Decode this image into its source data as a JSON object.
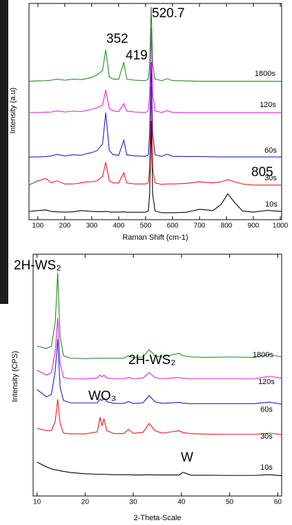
{
  "chart_data": [
    {
      "type": "line",
      "xlabel": "Raman Shift (cm-1)",
      "ylabel": "Intensity (a.u)",
      "xlim": [
        67,
        1005
      ],
      "ylim": [
        0,
        100
      ],
      "xticks": [
        100,
        200,
        300,
        400,
        500,
        600,
        700,
        800,
        900,
        1000
      ],
      "annotations": [
        "520.7",
        "352",
        "419",
        "805"
      ],
      "x": [
        67,
        100,
        130,
        150,
        170,
        200,
        230,
        260,
        280,
        300,
        320,
        340,
        352,
        365,
        380,
        400,
        419,
        430,
        460,
        500,
        510,
        515,
        520.7,
        526,
        535,
        560,
        580,
        600,
        650,
        700,
        750,
        780,
        805,
        830,
        860,
        900,
        950,
        1005
      ],
      "series": [
        {
          "name": "10s",
          "color": "#000000",
          "values": [
            3.8,
            4.2,
            4.5,
            3.8,
            3.6,
            3.5,
            3.6,
            4.2,
            4,
            3.8,
            3.7,
            3.7,
            3.8,
            3.6,
            3.5,
            3.5,
            3.6,
            3.5,
            3.4,
            3.5,
            4,
            12,
            45.7,
            12,
            4,
            3.2,
            3.2,
            3.2,
            3.4,
            4.8,
            4.2,
            7,
            12,
            8,
            4,
            3.5,
            4.3,
            3.8
          ]
        },
        {
          "name": "30s",
          "color": "#e8191b",
          "values": [
            16,
            18,
            19,
            17,
            18,
            16.5,
            16.5,
            17,
            17.5,
            17.5,
            18,
            20,
            26.5,
            18,
            17,
            17,
            21.7,
            17,
            16.5,
            16.5,
            17,
            24,
            61.7,
            24,
            17,
            16.3,
            16.5,
            16.5,
            16.8,
            17.5,
            17,
            17.5,
            18.5,
            17.5,
            16.5,
            16,
            16,
            16
          ]
        },
        {
          "name": "60s",
          "color": "#1c1cd4",
          "values": [
            29,
            29,
            29.2,
            29.5,
            30.2,
            29.5,
            30,
            29.8,
            30.5,
            31,
            32,
            35,
            49.5,
            32,
            30,
            29.8,
            36.7,
            30,
            29.5,
            29.3,
            30,
            40,
            72.8,
            40,
            30,
            29.3,
            30.3,
            29.3,
            29.2,
            29.2,
            29.1,
            29,
            29,
            29,
            29,
            29,
            29,
            29
          ]
        },
        {
          "name": "120s",
          "color": "#e020e0",
          "values": [
            49.5,
            49.6,
            49.7,
            49.8,
            50.3,
            49.8,
            50.2,
            50,
            50.5,
            51,
            51.8,
            53,
            60,
            51.5,
            50.3,
            50,
            53.7,
            50.2,
            49.8,
            49.6,
            50.3,
            58,
            88.8,
            58,
            50.3,
            49.6,
            50.4,
            49.6,
            49.5,
            49.5,
            49.5,
            49.5,
            49.5,
            49.5,
            49.5,
            49.5,
            49.5,
            49.5
          ]
        },
        {
          "name": "1800s",
          "color": "#1f8a1f",
          "values": [
            64,
            64.2,
            64.3,
            64.5,
            65,
            64.5,
            65,
            64.8,
            65.2,
            65.8,
            67,
            69,
            78.6,
            66,
            65,
            65,
            72.8,
            65,
            64.5,
            64.3,
            65,
            72,
            98.4,
            72,
            65,
            64.3,
            65.2,
            64.3,
            64.2,
            64,
            64,
            64,
            64,
            64,
            64,
            64,
            64,
            64
          ]
        }
      ]
    },
    {
      "type": "line",
      "xlabel": "2-Theta-Scale",
      "ylabel": "Intensity (CPS)",
      "xlim": [
        9.2,
        60.8
      ],
      "ylim": [
        0,
        100
      ],
      "xticks": [
        10,
        20,
        30,
        40,
        50,
        60
      ],
      "annotations": [
        "2H-WS₂",
        "2H-WS₂",
        "WO₃",
        "W"
      ],
      "x": [
        10,
        12,
        13,
        13.8,
        14.3,
        14.8,
        15.5,
        17,
        20,
        22.5,
        23.1,
        23.5,
        23.9,
        24.5,
        26,
        28,
        29,
        30,
        32,
        33.3,
        34.5,
        36,
        39.5,
        40.3,
        42,
        45,
        50,
        55,
        58.3,
        60.8
      ],
      "series": [
        {
          "name": "10s",
          "color": "#000000",
          "values": [
            14,
            12,
            11.2,
            10.8,
            10.7,
            10.4,
            10.2,
            9.7,
            9.2,
            9,
            9,
            8.9,
            9,
            8.9,
            8.8,
            8.8,
            8.8,
            8.7,
            8.7,
            8.8,
            8.7,
            8.7,
            8.7,
            9.8,
            8.6,
            8.6,
            8.5,
            8.5,
            8.8,
            8.4
          ]
        },
        {
          "name": "30s",
          "color": "#e8191b",
          "values": [
            28,
            27,
            27,
            31,
            40,
            30,
            26,
            25.7,
            25.7,
            26.5,
            32.5,
            29,
            32,
            27,
            25.8,
            25.8,
            27.5,
            25.9,
            26.3,
            30,
            27,
            26,
            27,
            26.2,
            25.8,
            25.6,
            25.5,
            25.5,
            26,
            25.4
          ]
        },
        {
          "name": "60s",
          "color": "#1c1cd4",
          "values": [
            44,
            41,
            42,
            52,
            65,
            45,
            39.5,
            38.5,
            38.5,
            38.5,
            40,
            39.5,
            40.5,
            39,
            38.3,
            38.3,
            39,
            38.3,
            38.5,
            41.5,
            39,
            38.3,
            38.7,
            38.4,
            38.2,
            38.2,
            38.2,
            38.2,
            38.8,
            38
          ]
        },
        {
          "name": "120s",
          "color": "#e020e0",
          "values": [
            52,
            50,
            51,
            60,
            73.7,
            55,
            49,
            48.5,
            48.5,
            48.8,
            50,
            49.3,
            50,
            48.8,
            48.5,
            48.5,
            49,
            48.5,
            48.8,
            51,
            49,
            48.5,
            49,
            48.7,
            48.5,
            48.5,
            48.5,
            48.5,
            49.5,
            48.7
          ]
        },
        {
          "name": "1800s",
          "color": "#1f8a1f",
          "values": [
            62,
            61,
            62,
            72,
            92.3,
            66,
            58,
            57,
            56.8,
            57,
            57,
            57,
            57,
            57,
            57,
            57,
            58,
            57.2,
            57.5,
            60.5,
            58,
            57.5,
            59,
            58,
            57.5,
            57.3,
            57.5,
            57.3,
            58.5,
            57.5
          ]
        }
      ]
    }
  ]
}
